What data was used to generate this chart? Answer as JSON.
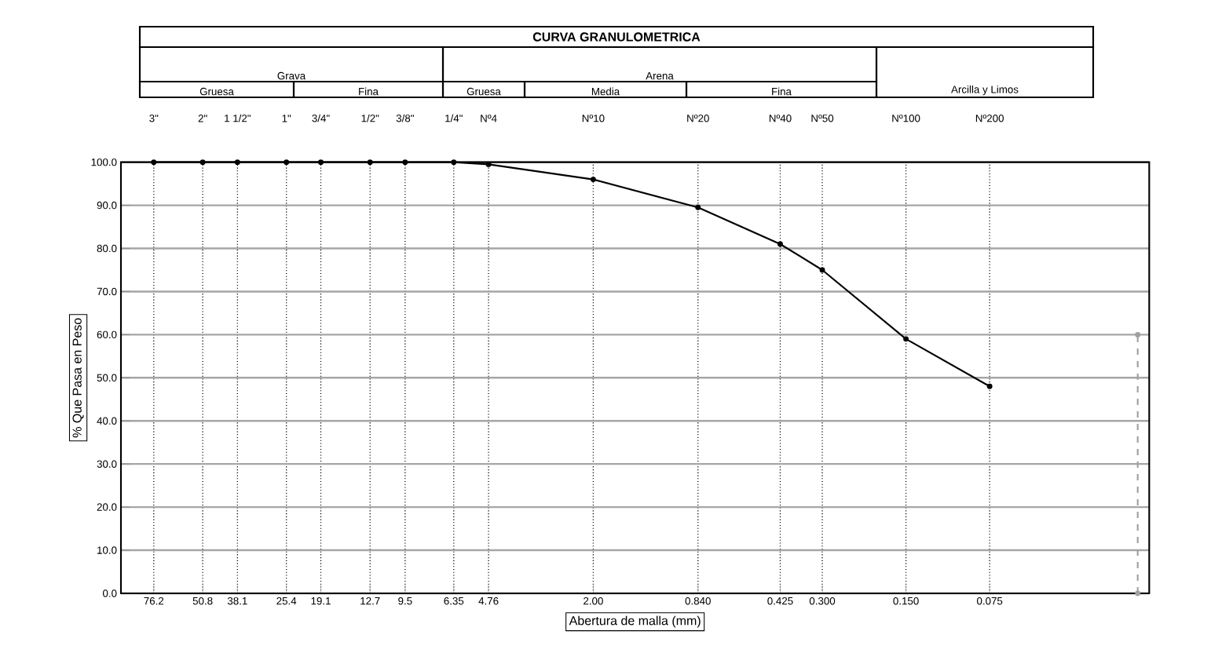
{
  "chart_data": {
    "type": "line",
    "title": "CURVA GRANULOMETRICA",
    "xlabel": "Abertura de malla (mm)",
    "ylabel": "% Que Pasa en Peso",
    "log": "x",
    "grid": true,
    "marker": "circle",
    "xlim": [
      100,
      0.02
    ],
    "ylim": [
      0,
      100
    ],
    "xticks": [
      {
        "value": 76.2,
        "label": "76.2"
      },
      {
        "value": 50.8,
        "label": "50.8"
      },
      {
        "value": 38.1,
        "label": "38.1"
      },
      {
        "value": 25.4,
        "label": "25.4"
      },
      {
        "value": 19.1,
        "label": "19.1"
      },
      {
        "value": 12.7,
        "label": "12.7"
      },
      {
        "value": 9.5,
        "label": "9.5"
      },
      {
        "value": 6.35,
        "label": "6.35"
      },
      {
        "value": 4.76,
        "label": "4.76"
      },
      {
        "value": 2.0,
        "label": "2.00"
      },
      {
        "value": 0.84,
        "label": "0.840"
      },
      {
        "value": 0.425,
        "label": "0.425"
      },
      {
        "value": 0.3,
        "label": "0.300"
      },
      {
        "value": 0.15,
        "label": "0.150"
      },
      {
        "value": 0.075,
        "label": "0.075"
      }
    ],
    "yticks": [
      {
        "value": 0,
        "label": "0.0"
      },
      {
        "value": 10,
        "label": "10.0"
      },
      {
        "value": 20,
        "label": "20.0"
      },
      {
        "value": 30,
        "label": "30.0"
      },
      {
        "value": 40,
        "label": "40.0"
      },
      {
        "value": 50,
        "label": "50.0"
      },
      {
        "value": 60,
        "label": "60.0"
      },
      {
        "value": 70,
        "label": "70.0"
      },
      {
        "value": 80,
        "label": "80.0"
      },
      {
        "value": 90,
        "label": "90.0"
      },
      {
        "value": 100,
        "label": "100.0"
      }
    ],
    "annotations": [
      "3\"",
      "2\"",
      "1 1/2\"",
      "1\"",
      "3/4\"",
      "1/2\"",
      "3/8\"",
      "1/4\"",
      "Nº4",
      "Nº10",
      "Nº20",
      "Nº40",
      "Nº50",
      "Nº100",
      "Nº200",
      "Grava",
      "Arena",
      "Gruesa",
      "Fina",
      "Gruesa",
      "Media",
      "Fina",
      "Arcilla y Limos"
    ],
    "series": [
      {
        "color": "#000000",
        "x": [
          76.2,
          50.8,
          38.1,
          25.4,
          19.1,
          12.7,
          9.5,
          6.35,
          4.76,
          2.0,
          0.84,
          0.425,
          0.3,
          0.15,
          0.075
        ],
        "values": [
          100,
          100,
          100,
          100,
          100,
          100,
          100,
          100,
          99.5,
          96,
          89.5,
          81,
          75,
          59,
          48
        ]
      },
      {
        "type": "line",
        "color": "#a0a0a0",
        "line_style": "dashed",
        "x": [
          0.022,
          0.022
        ],
        "values": [
          0,
          60
        ]
      }
    ]
  }
}
